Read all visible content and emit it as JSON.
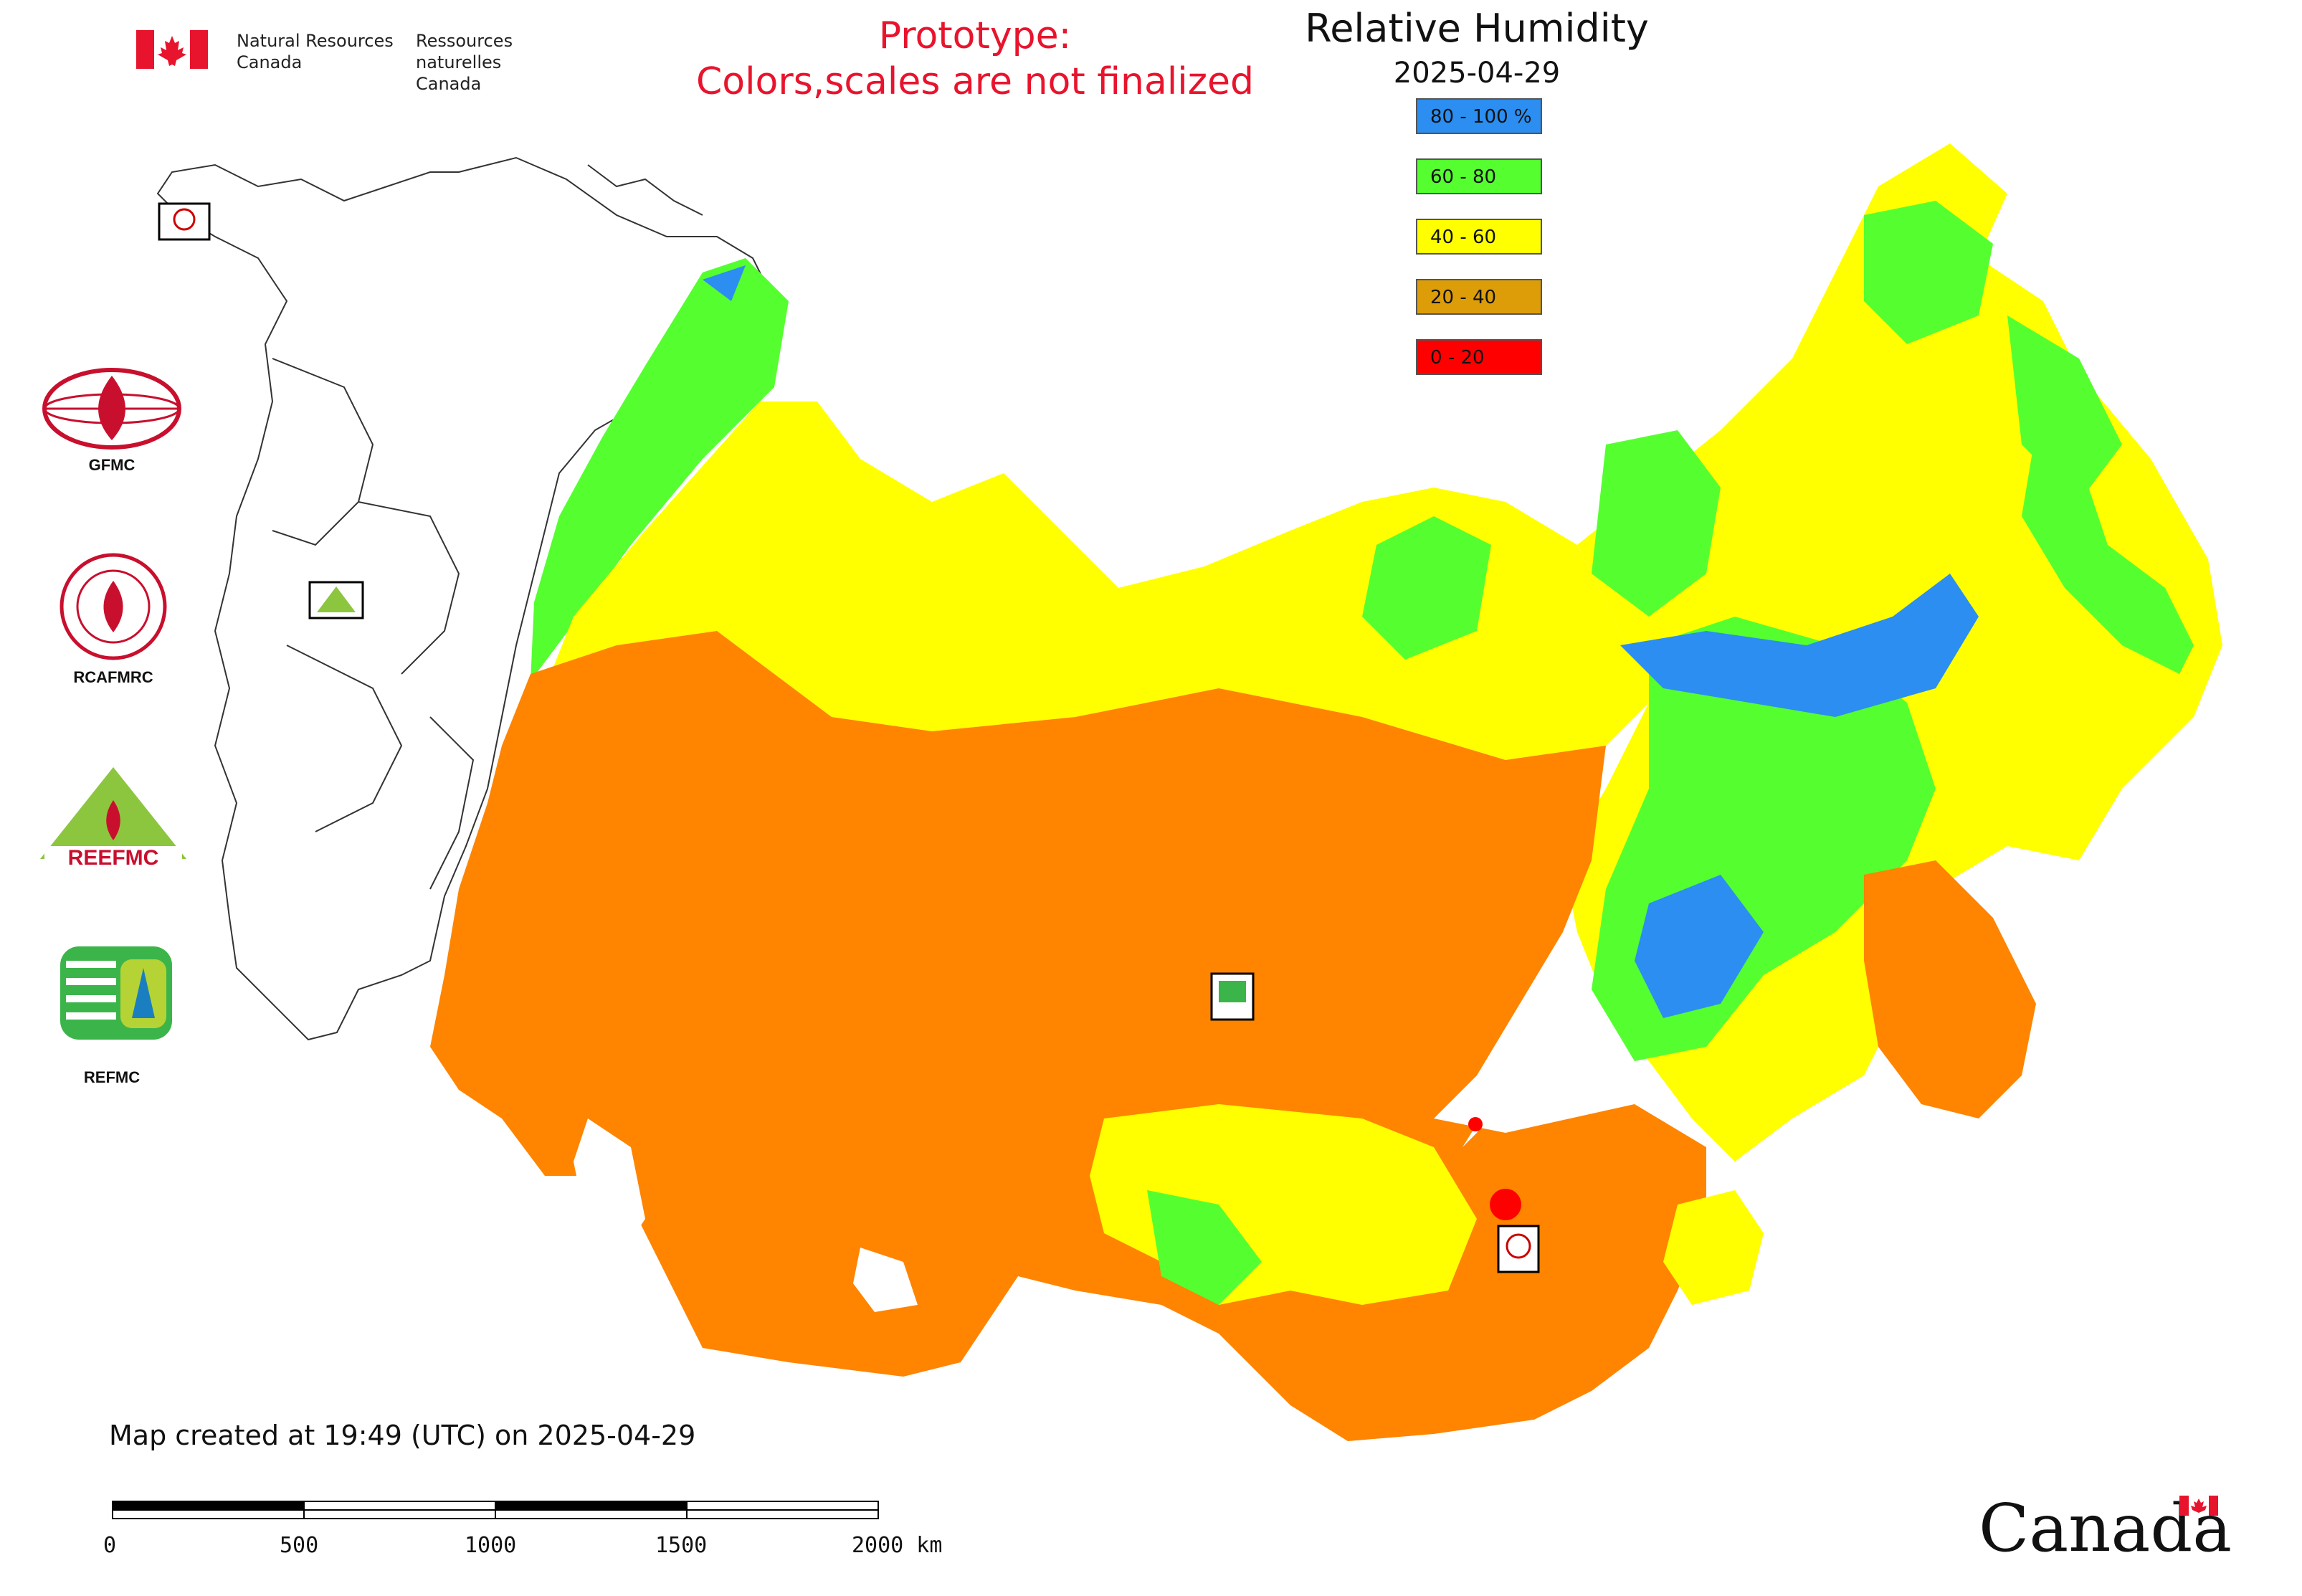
{
  "header": {
    "dept_en_line1": "Natural Resources",
    "dept_en_line2": "Canada",
    "dept_fr_line1": "Ressources naturelles",
    "dept_fr_line2": "Canada"
  },
  "notice": {
    "line1": "Prototype:",
    "line2": "Colors,scales are not finalized"
  },
  "title": "Relative Humidity",
  "date": "2025-04-29",
  "legend": [
    {
      "label": "80 - 100 %",
      "color": "#2b8ef0"
    },
    {
      "label": "60 - 80",
      "color": "#55ff2f"
    },
    {
      "label": "40 - 60",
      "color": "#ffff00"
    },
    {
      "label": "20 - 40",
      "color": "#dd9d08"
    },
    {
      "label": "0 - 20",
      "color": "#ff0000"
    }
  ],
  "map_colors": {
    "orange": "#ff8400",
    "yellow": "#ffff00",
    "green": "#55ff2f",
    "blue": "#2b8ef0",
    "red": "#ff0000"
  },
  "side_logos": {
    "gfmc": "GFMC",
    "rcafmrc": "RCAFMRC",
    "reefmc": "REEFMC",
    "refmc": "REFMC"
  },
  "footer": {
    "created": "Map created at 19:49 (UTC) on 2025-04-29",
    "scale_labels": [
      "0",
      "500",
      "1000",
      "1500",
      "2000 km"
    ],
    "wordmark": "Canada"
  }
}
